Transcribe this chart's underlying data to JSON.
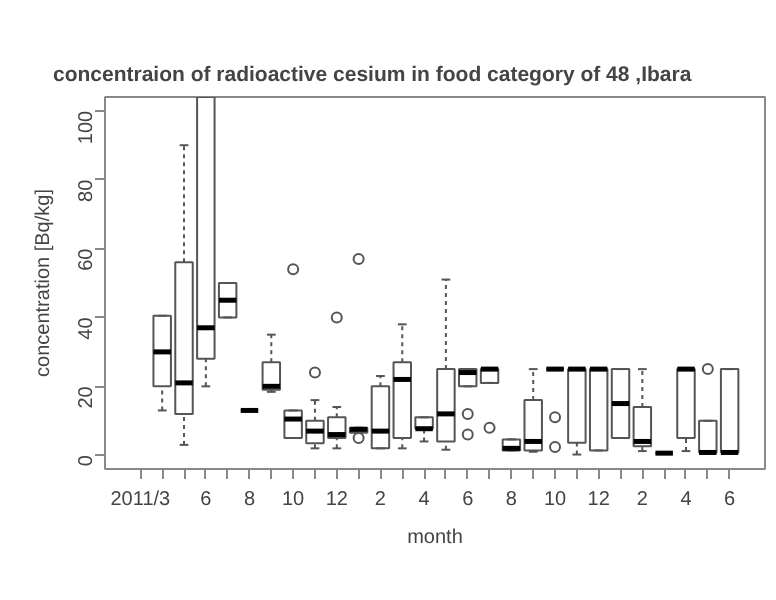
{
  "chart_data": {
    "type": "box",
    "title": "concentraion of radioactive cesium in food category of  48 ,Ibara",
    "xlabel": "month",
    "ylabel": "concentration [Bq/kg]",
    "categories": [
      "2011/3",
      null,
      null,
      "6",
      null,
      "8",
      null,
      "10",
      null,
      "12",
      null,
      "2",
      null,
      "4",
      null,
      "6",
      null,
      "8",
      null,
      "10",
      null,
      "12",
      null,
      "2",
      null,
      "4",
      null,
      "6"
    ],
    "color": "#555555",
    "ylim": [
      -4,
      104
    ],
    "yticks": [
      0,
      20,
      40,
      60,
      80,
      100
    ],
    "grid": false,
    "boxes": [
      null,
      {
        "low": 13,
        "q1": 20,
        "median": 30,
        "q3": 40.5,
        "high": 40.5
      },
      {
        "low": 3,
        "q1": 12,
        "median": 21,
        "q3": 56,
        "high": 90
      },
      {
        "low": 20,
        "q1": 28,
        "median": 37,
        "q3": 104,
        "high": 104
      },
      {
        "low": 40,
        "q1": 40,
        "median": 45,
        "q3": 50,
        "high": 50
      },
      {
        "low": 13,
        "q1": 13,
        "median": 13,
        "q3": 13,
        "high": 13
      },
      {
        "low": 18.4,
        "q1": 19,
        "median": 20,
        "q3": 27,
        "high": 35
      },
      {
        "low": 5,
        "q1": 5,
        "median": 10.5,
        "q3": 13,
        "high": 13,
        "outliers": [
          54
        ]
      },
      {
        "low": 2,
        "q1": 3.5,
        "median": 7,
        "q3": 10,
        "high": 16,
        "outliers": [
          24
        ]
      },
      {
        "low": 2,
        "q1": 5,
        "median": 6,
        "q3": 11,
        "high": 14,
        "outliers": [
          40
        ]
      },
      {
        "low": 6.5,
        "q1": 6.5,
        "median": 7.5,
        "q3": 8,
        "high": 8,
        "outliers": [
          5,
          57
        ]
      },
      {
        "low": 2,
        "q1": 2,
        "median": 7,
        "q3": 20,
        "high": 23
      },
      {
        "low": 2,
        "q1": 5,
        "median": 22,
        "q3": 27,
        "high": 38
      },
      {
        "low": 4,
        "q1": 7.7,
        "median": 7.7,
        "q3": 11,
        "high": 11
      },
      {
        "low": 1.6,
        "q1": 4,
        "median": 12,
        "q3": 25,
        "high": 51
      },
      {
        "low": 20,
        "q1": 20,
        "median": 24,
        "q3": 25,
        "high": 25,
        "outliers": [
          12,
          6
        ]
      },
      {
        "low": 21,
        "q1": 21,
        "median": 25,
        "q3": 25,
        "high": 25,
        "outliers": [
          8
        ]
      },
      {
        "low": 1.4,
        "q1": 1.4,
        "median": 2,
        "q3": 4.6,
        "high": 4.6
      },
      {
        "low": 1,
        "q1": 1.4,
        "median": 4,
        "q3": 16,
        "high": 25
      },
      {
        "low": 25,
        "q1": 25,
        "median": 25,
        "q3": 25,
        "high": 25,
        "outliers": [
          11,
          2.4
        ]
      },
      {
        "low": 0.2,
        "q1": 3.6,
        "median": 25,
        "q3": 25,
        "high": 25
      },
      {
        "low": 1.4,
        "q1": 1.4,
        "median": 25,
        "q3": 25,
        "high": 25
      },
      {
        "low": 5,
        "q1": 5,
        "median": 15,
        "q3": 25,
        "high": 25
      },
      {
        "low": 1.2,
        "q1": 2.6,
        "median": 4,
        "q3": 14,
        "high": 25
      },
      {
        "low": 0.6,
        "q1": 0.6,
        "median": 0.6,
        "q3": 0.6,
        "high": 0.6
      },
      {
        "low": 1.2,
        "q1": 5,
        "median": 25,
        "q3": 25,
        "high": 25
      },
      {
        "low": 0.8,
        "q1": 0.8,
        "median": 0.8,
        "q3": 10,
        "high": 10,
        "outliers": [
          25
        ]
      },
      {
        "low": 0.8,
        "q1": 0.8,
        "median": 0.8,
        "q3": 25,
        "high": 25
      }
    ]
  }
}
